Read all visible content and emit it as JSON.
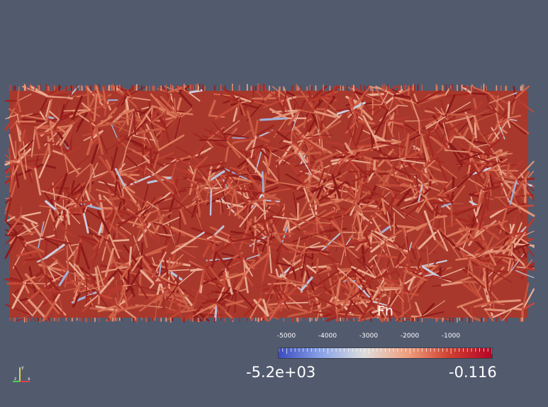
{
  "scalar_bar": {
    "title": "Fn",
    "tick_labels": [
      "-5000",
      "-4000",
      "-3000",
      "-2000",
      "-1000"
    ],
    "tick_values": [
      -5000,
      -4000,
      -3000,
      -2000,
      -1000
    ],
    "range_min_label": "-5.2e+03",
    "range_max_label": "-0.116",
    "range_min": -5200,
    "range_max": -0.116,
    "colormap": [
      "#3b4cc0",
      "#8aa3e8",
      "#dddddd",
      "#f0a080",
      "#d04030",
      "#b40426"
    ]
  },
  "axes": {
    "x_label": "x",
    "y_label": "y",
    "z_label": "z",
    "x_color": "#ff4040",
    "y_color": "#ffff40",
    "z_color": "#40ff40"
  },
  "colors": {
    "background": "#525a6e"
  }
}
